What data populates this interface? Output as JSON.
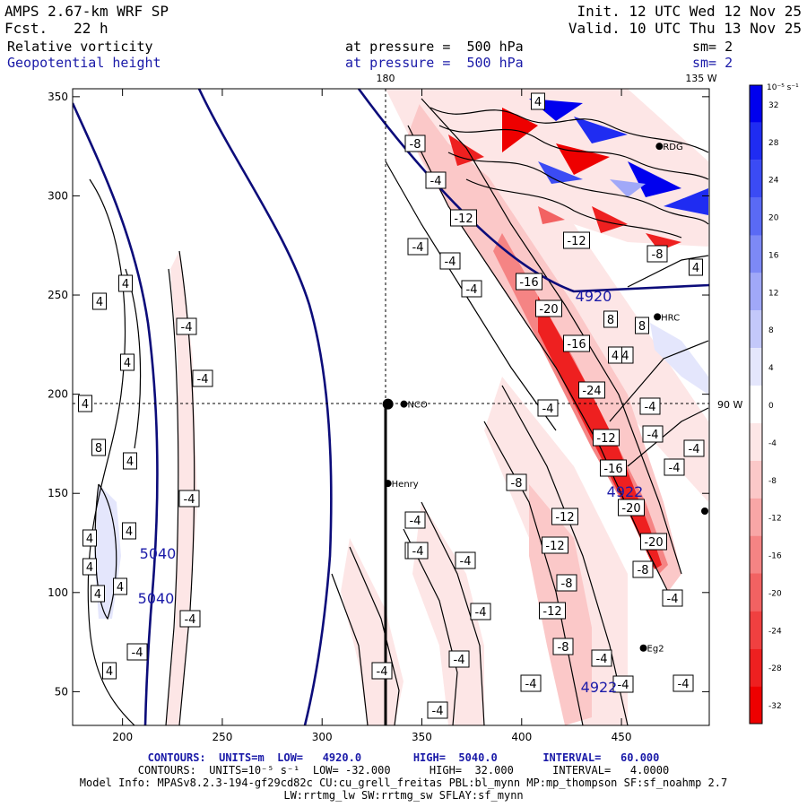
{
  "header": {
    "model_title": "AMPS 2.67-km WRF SP",
    "forecast": "Fcst.   22 h",
    "init": "Init. 12 UTC Wed 12 Nov 25",
    "valid": "Valid. 10 UTC Thu 13 Nov 25",
    "field1_name": "Relative vorticity",
    "field1_level": "at pressure =  500 hPa",
    "field1_sm": "sm= 2",
    "field2_name": "Geopotential height",
    "field2_level": "at pressure =  500 hPa",
    "field2_sm": "sm= 2"
  },
  "colorbar": {
    "unit_label": "10⁻⁵ s⁻¹",
    "tick_labels": [
      "32",
      "28",
      "24",
      "20",
      "16",
      "12",
      "8",
      "4",
      "0",
      "-4",
      "-8",
      "-12",
      "-16",
      "-20",
      "-24",
      "-28",
      "-32"
    ],
    "colors": [
      "#0000ee",
      "#1f2cf2",
      "#3b4bf4",
      "#5a6af5",
      "#7d89f6",
      "#a0a8f8",
      "#c3c8fa",
      "#e4e6fc",
      "#ffffff",
      "#fde6e6",
      "#fbc8c8",
      "#f8a6a6",
      "#f58484",
      "#f26262",
      "#f04040",
      "#ee2020",
      "#ee0000"
    ]
  },
  "stations": [
    {
      "name": "NCO",
      "x": 341,
      "y": 195
    },
    {
      "name": "Henry",
      "x": 333,
      "y": 155
    },
    {
      "name": "RDG",
      "x": 469,
      "y": 325
    },
    {
      "name": "HRC",
      "x": 468,
      "y": 239
    },
    {
      "name": "Eg2",
      "x": 461,
      "y": 72
    }
  ],
  "graticule_labels": {
    "top_left": "180",
    "top_right": "135 W",
    "right": "90 W"
  },
  "height_labels": [
    "5040",
    "5040",
    "4920",
    "4922",
    "4922"
  ],
  "vorticity_labels": [
    "-8",
    "-4",
    "-12",
    "-4",
    "-4",
    "-4",
    "-16",
    "-20",
    "-16",
    "-24",
    "-4",
    "-4",
    "-12",
    "-16",
    "-20",
    "-20",
    "-8",
    "-4",
    "-8",
    "-12",
    "-12",
    "-8",
    "-12",
    "-8",
    "-4",
    "-4",
    "-4",
    "-4",
    "-4",
    "-4",
    "-4",
    "-4",
    "-4",
    "-4",
    "-4",
    "-4",
    "-4",
    "-4",
    "-4",
    "4",
    "4",
    "4",
    "4",
    "8",
    "4",
    "4",
    "4",
    "4",
    "4",
    "4",
    "8",
    "8",
    "4",
    "4",
    "4",
    "4",
    "-8",
    "-12",
    "-4",
    "-4",
    "-4",
    "-4",
    "-4",
    "-4"
  ],
  "chart_data": {
    "type": "contour-map",
    "title": "Relative vorticity and Geopotential height at 500 hPa",
    "x_ticks": [
      200,
      250,
      300,
      350,
      400,
      450
    ],
    "y_ticks": [
      50,
      100,
      150,
      200,
      250,
      300,
      350
    ],
    "xlim": [
      175,
      494
    ],
    "ylim": [
      33,
      354
    ]
  },
  "footer": {
    "line1": "CONTOURS:  UNITS=m  LOW=   4920.0        HIGH=  5040.0       INTERVAL=   60.000",
    "line2": "CONTOURS:  UNITS=10⁻⁵ s⁻¹  LOW= -32.000      HIGH=  32.000      INTERVAL=   4.0000",
    "line3": "Model Info: MPASv8.2.3-194-gf29cd82c CU:cu_grell_freitas PBL:bl_mynn MP:mp_thompson SF:sf_noahmp 2.7",
    "line4": "LW:rrtmg_lw SW:rrtmg_sw SFLAY:sf_mynn"
  }
}
